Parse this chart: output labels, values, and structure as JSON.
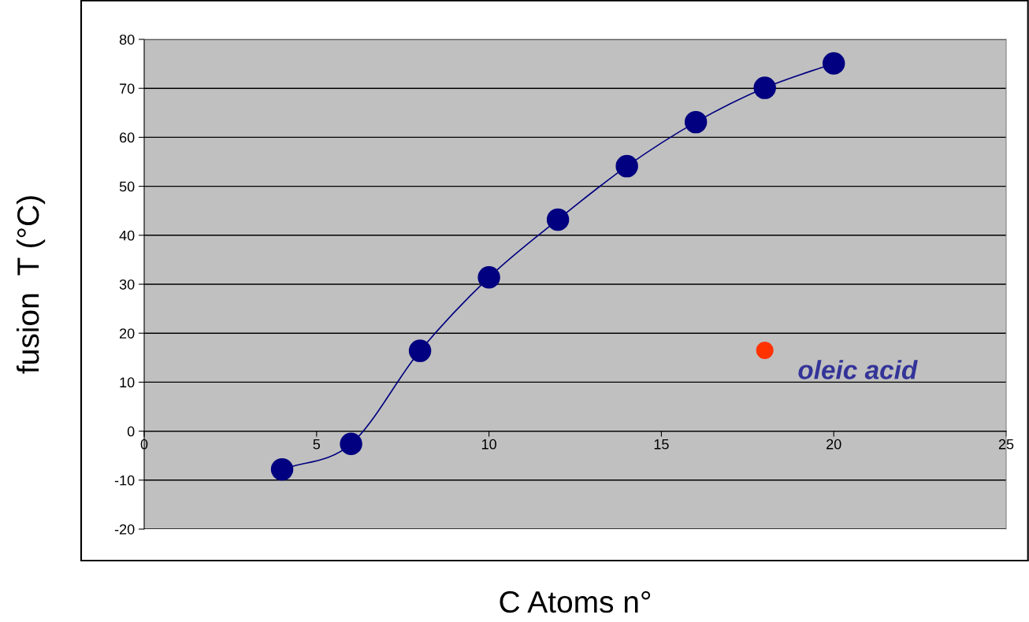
{
  "chart_data": {
    "type": "line",
    "xlabel": "C Atoms n°",
    "ylabel": "fusion  T (°C)",
    "xlim": [
      0,
      25
    ],
    "xticks": [
      0,
      5,
      10,
      15,
      20,
      25
    ],
    "ylim": [
      -20,
      80
    ],
    "yticks": [
      -20,
      -10,
      0,
      10,
      20,
      30,
      40,
      50,
      60,
      70,
      80
    ],
    "grid": "y",
    "marker": "circle",
    "line_style": "solid",
    "series": [
      {
        "color": "#000080",
        "x": [
          4,
          6,
          8,
          10,
          12,
          14,
          16,
          18,
          20
        ],
        "values": [
          -7.8,
          -2.6,
          16.4,
          31.4,
          43.2,
          54.1,
          63.1,
          70.1,
          75.1
        ]
      },
      {
        "type": "scatter",
        "name": "oleic acid",
        "color": "#ff3300",
        "x": [
          18
        ],
        "values": [
          16.5
        ]
      }
    ]
  }
}
